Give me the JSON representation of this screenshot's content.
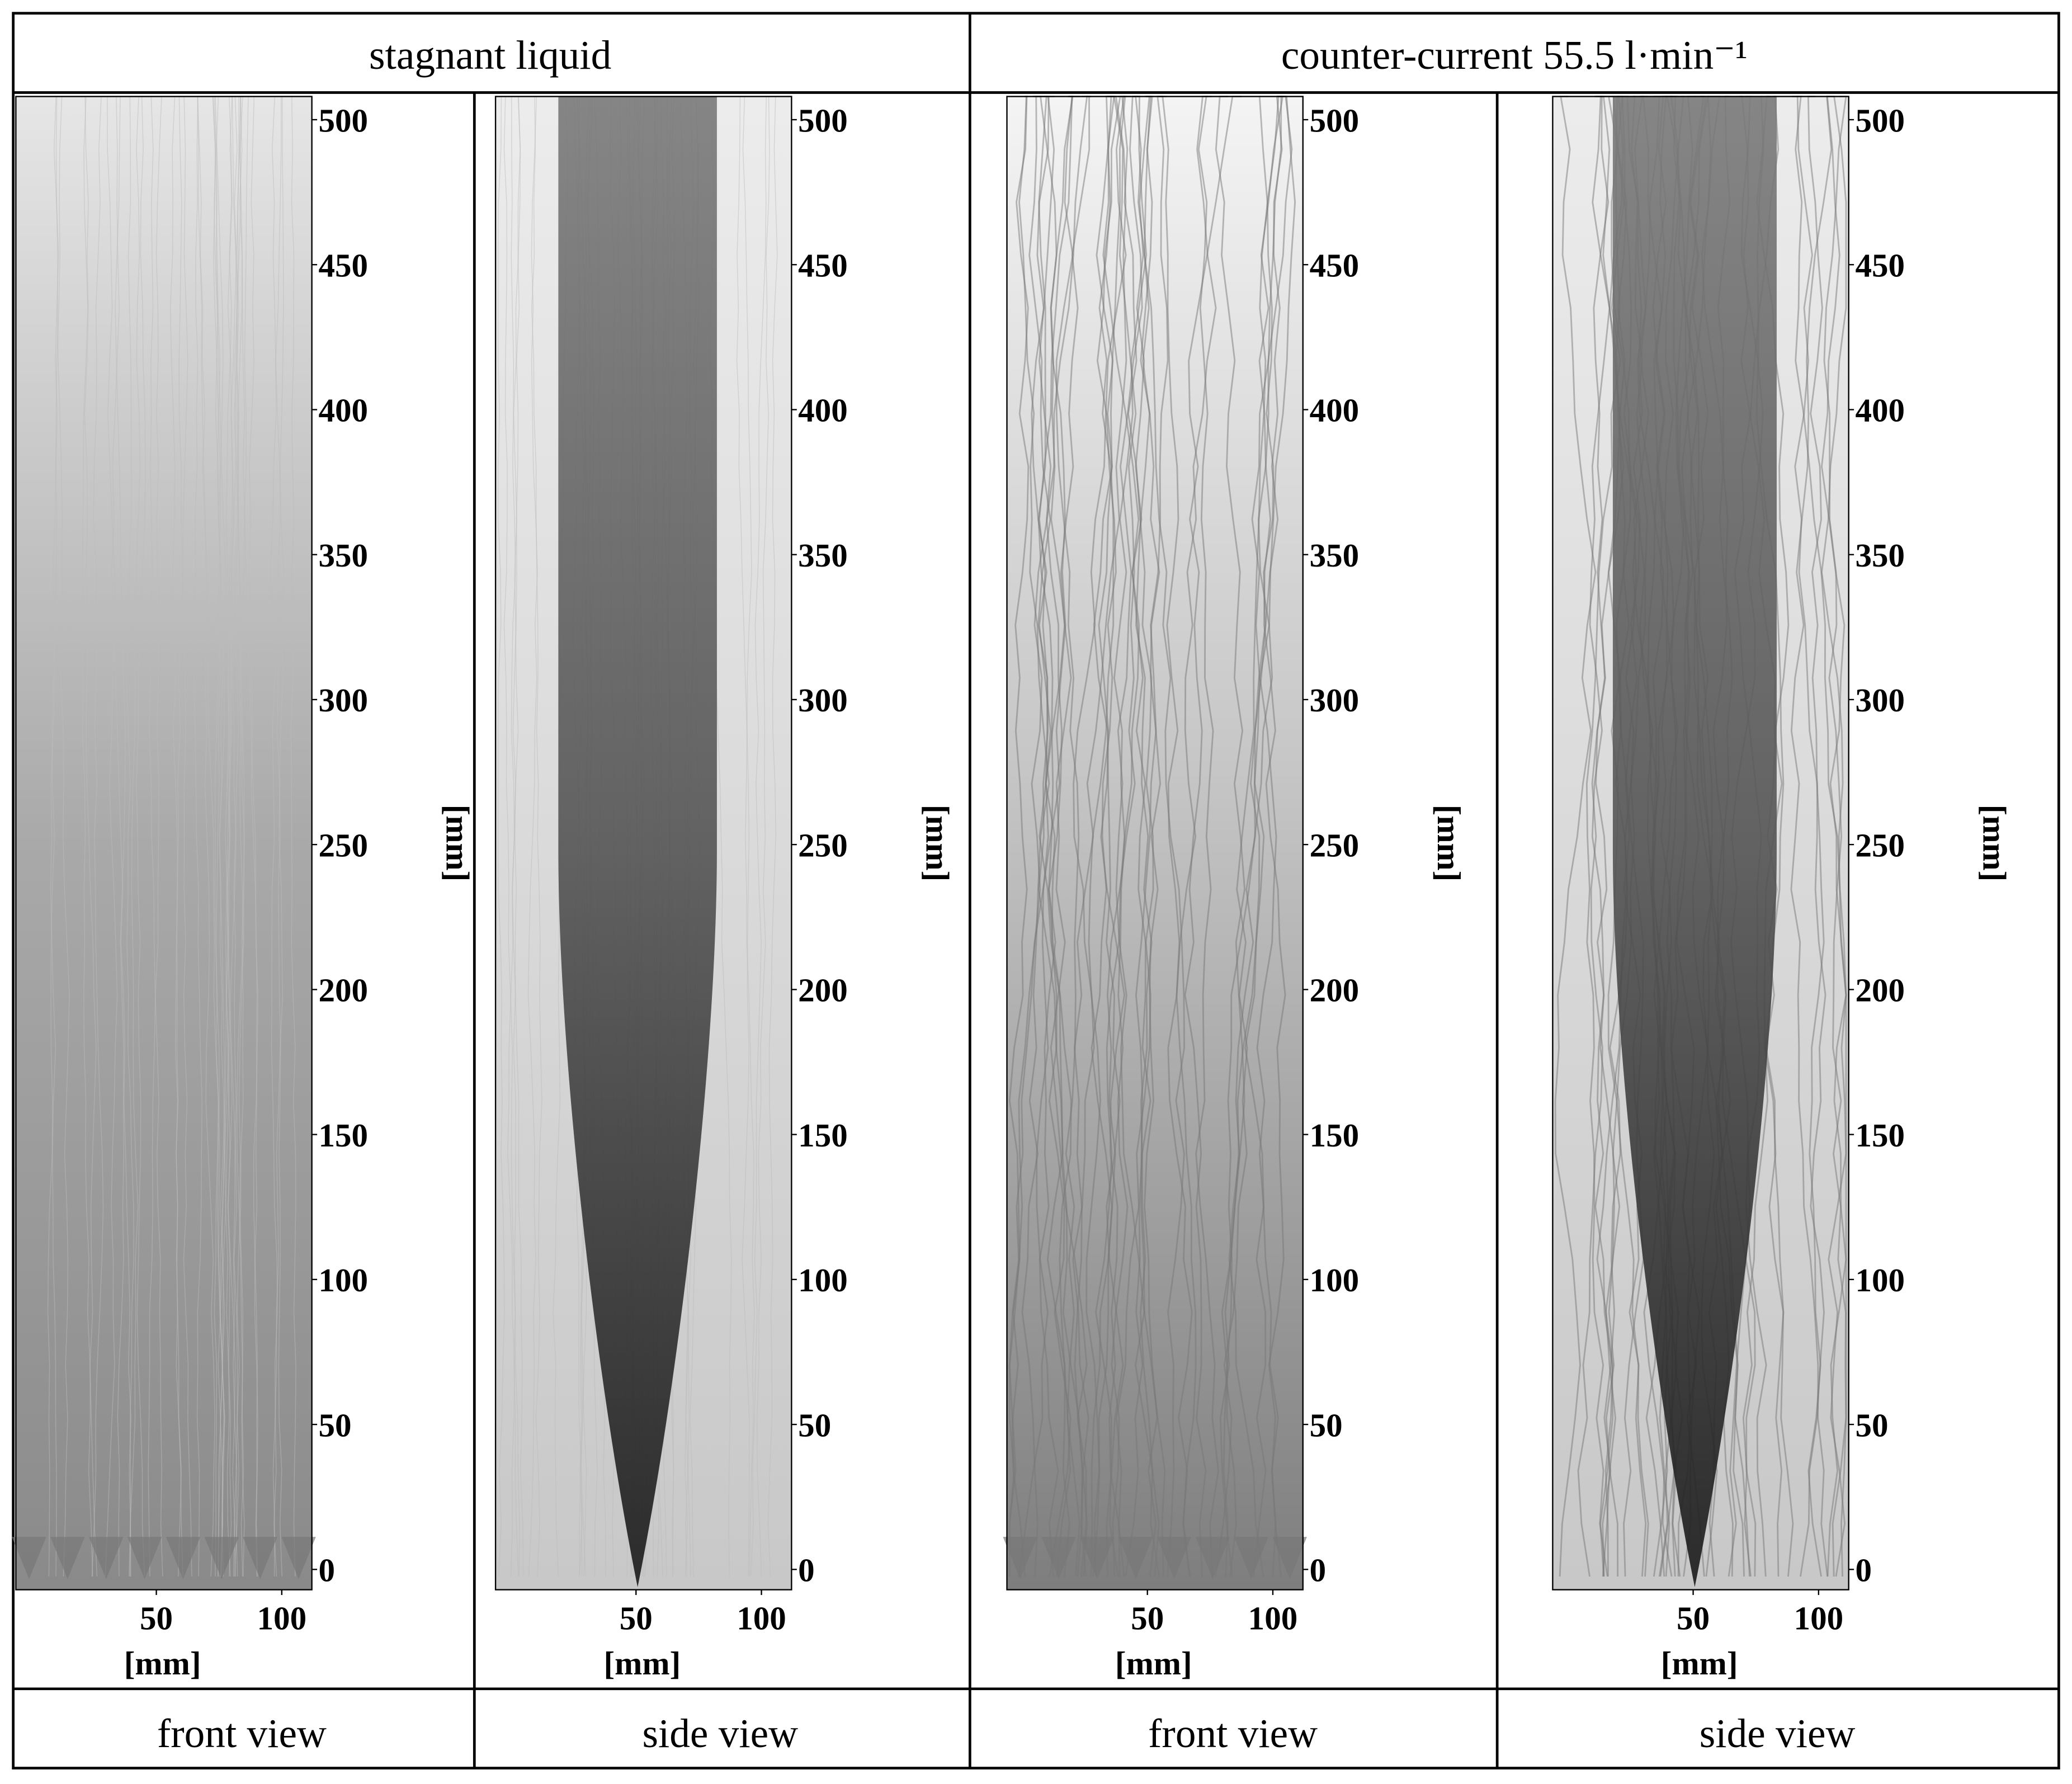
{
  "header": {
    "columns": [
      "stagnant liquid",
      "counter-current 55.5 l·min⁻¹"
    ]
  },
  "panels": [
    {
      "x_label": "[mm]",
      "y_label": "[mm]",
      "xlim": [
        -6,
        112
      ],
      "ylim": [
        -7,
        508
      ],
      "xticks": [
        50,
        100
      ],
      "yticks": [
        0,
        50,
        100,
        150,
        200,
        250,
        300,
        350,
        400,
        450,
        500
      ]
    },
    {
      "x_label": "[mm]",
      "y_label": "[mm]",
      "xlim": [
        -6,
        112
      ],
      "ylim": [
        -7,
        508
      ],
      "xticks": [
        50,
        100
      ],
      "yticks": [
        0,
        50,
        100,
        150,
        200,
        250,
        300,
        350,
        400,
        450,
        500
      ]
    },
    {
      "x_label": "[mm]",
      "y_label": "[mm]",
      "xlim": [
        -6,
        112
      ],
      "ylim": [
        -7,
        508
      ],
      "xticks": [
        50,
        100
      ],
      "yticks": [
        0,
        50,
        100,
        150,
        200,
        250,
        300,
        350,
        400,
        450,
        500
      ]
    },
    {
      "x_label": "[mm]",
      "y_label": "[mm]",
      "xlim": [
        -6,
        112
      ],
      "ylim": [
        -7,
        508
      ],
      "xticks": [
        50,
        100
      ],
      "yticks": [
        0,
        50,
        100,
        150,
        200,
        250,
        300,
        350,
        400,
        450,
        500
      ]
    }
  ],
  "footer": {
    "labels": [
      "front view",
      "side view",
      "front view",
      "side view"
    ]
  }
}
